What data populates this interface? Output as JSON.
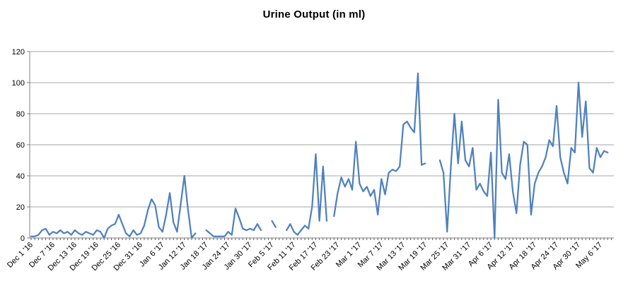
{
  "chart_data": {
    "type": "line",
    "title": "Urine Output (in ml)",
    "xlabel": "",
    "ylabel": "",
    "ylim": [
      0,
      120
    ],
    "yticks": [
      0,
      20,
      40,
      60,
      80,
      100,
      120
    ],
    "grid": "horizontal",
    "legend": "none",
    "x_tick_label_step": 6,
    "x_tick_labels": [
      "Dec 1 '16",
      "Dec 7 '16",
      "Dec 13 '16",
      "Dec 19 '16",
      "Dec 25 '16",
      "Dec 31 '16",
      "Jan 6 '17",
      "Jan 12 '17",
      "Jan 18 '17",
      "Jan 24 '17",
      "Jan 30 '17",
      "Feb 5 '17",
      "Feb 11 '17",
      "Feb 17 '17",
      "Feb 23 '17",
      "Mar 1 '17",
      "Mar 7 '17",
      "Mar 13 '17",
      "Mar 19 '17",
      "Mar 25 '17",
      "Mar 31 '17",
      "Apr 6 '17",
      "Apr 12 '17",
      "Apr 18 '17",
      "Apr 24 '17",
      "Apr 30 '17",
      "May 6 '17"
    ],
    "values": [
      1,
      1,
      2,
      5,
      6,
      2,
      4,
      3,
      5,
      3,
      4,
      2,
      5,
      3,
      2,
      4,
      3,
      2,
      5,
      4,
      0,
      6,
      8,
      9,
      15,
      9,
      3,
      1,
      5,
      2,
      3,
      8,
      18,
      25,
      21,
      7,
      4,
      15,
      29,
      10,
      4,
      22,
      40,
      18,
      0,
      3,
      null,
      null,
      5,
      3,
      1,
      1,
      1,
      1,
      4,
      2,
      19,
      13,
      6,
      5,
      6,
      5,
      9,
      5,
      null,
      null,
      11,
      7,
      null,
      null,
      5,
      9,
      4,
      2,
      5,
      8,
      6,
      20,
      54,
      11,
      46,
      11,
      null,
      14,
      29,
      39,
      33,
      38,
      31,
      62,
      35,
      30,
      33,
      27,
      31,
      15,
      38,
      28,
      42,
      44,
      43,
      46,
      73,
      75,
      71,
      68,
      106,
      47,
      48,
      null,
      null,
      null,
      50,
      42,
      4,
      45,
      80,
      48,
      75,
      50,
      46,
      58,
      31,
      35,
      30,
      27,
      55,
      0,
      89,
      42,
      38,
      54,
      30,
      16,
      47,
      62,
      60,
      15,
      35,
      42,
      46,
      52,
      63,
      59,
      85,
      52,
      42,
      35,
      58,
      55,
      100,
      65,
      88,
      45,
      42,
      58,
      52,
      56,
      55
    ],
    "colors": {
      "line": "#4F81BD",
      "gridline": "#A6A6A6",
      "axis": "#808080",
      "tick": "#595959",
      "text": "#000000",
      "background": "#FFFFFF"
    }
  }
}
